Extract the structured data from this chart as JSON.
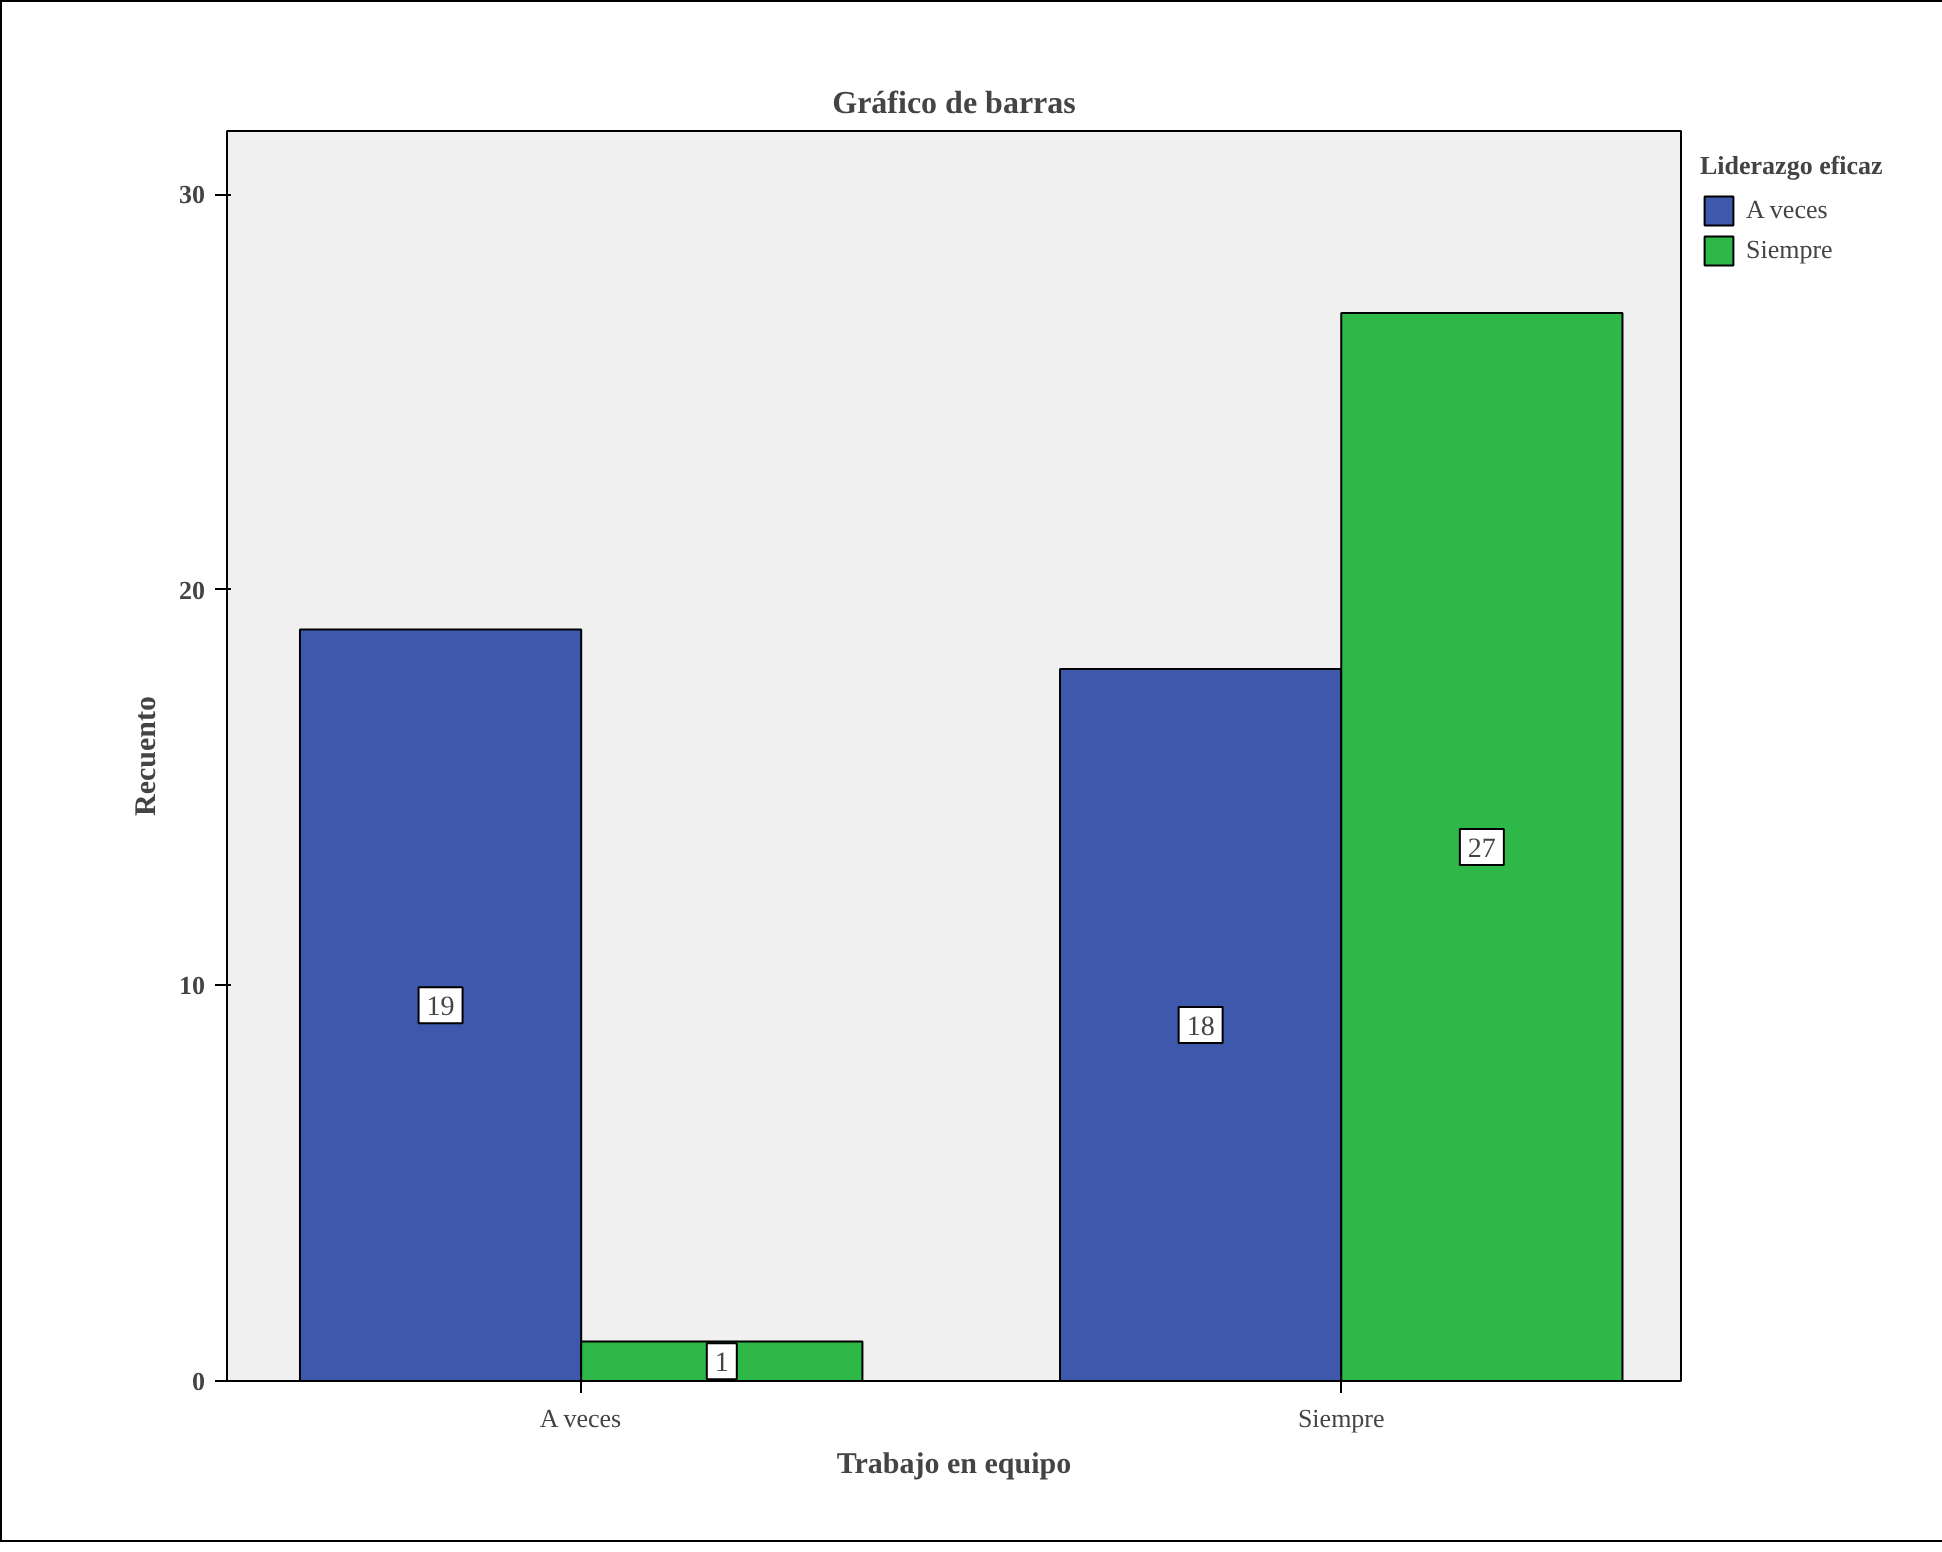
{
  "chart_data": {
    "type": "bar",
    "title": "Gráfico de barras",
    "xlabel": "Trabajo en equipo",
    "ylabel": "Recuento",
    "legend_title": "Liderazgo eficaz",
    "categories": [
      "A veces",
      "Siempre"
    ],
    "series": [
      {
        "name": "A veces",
        "color": "#3e58ac",
        "values": [
          19,
          18
        ]
      },
      {
        "name": "Siempre",
        "color": "#2eb848",
        "values": [
          1,
          27
        ]
      }
    ],
    "ylim": [
      0,
      31.6
    ],
    "yticks": [
      0,
      10,
      20,
      30
    ],
    "data_labels": true,
    "legend": "top right",
    "grid": false
  }
}
